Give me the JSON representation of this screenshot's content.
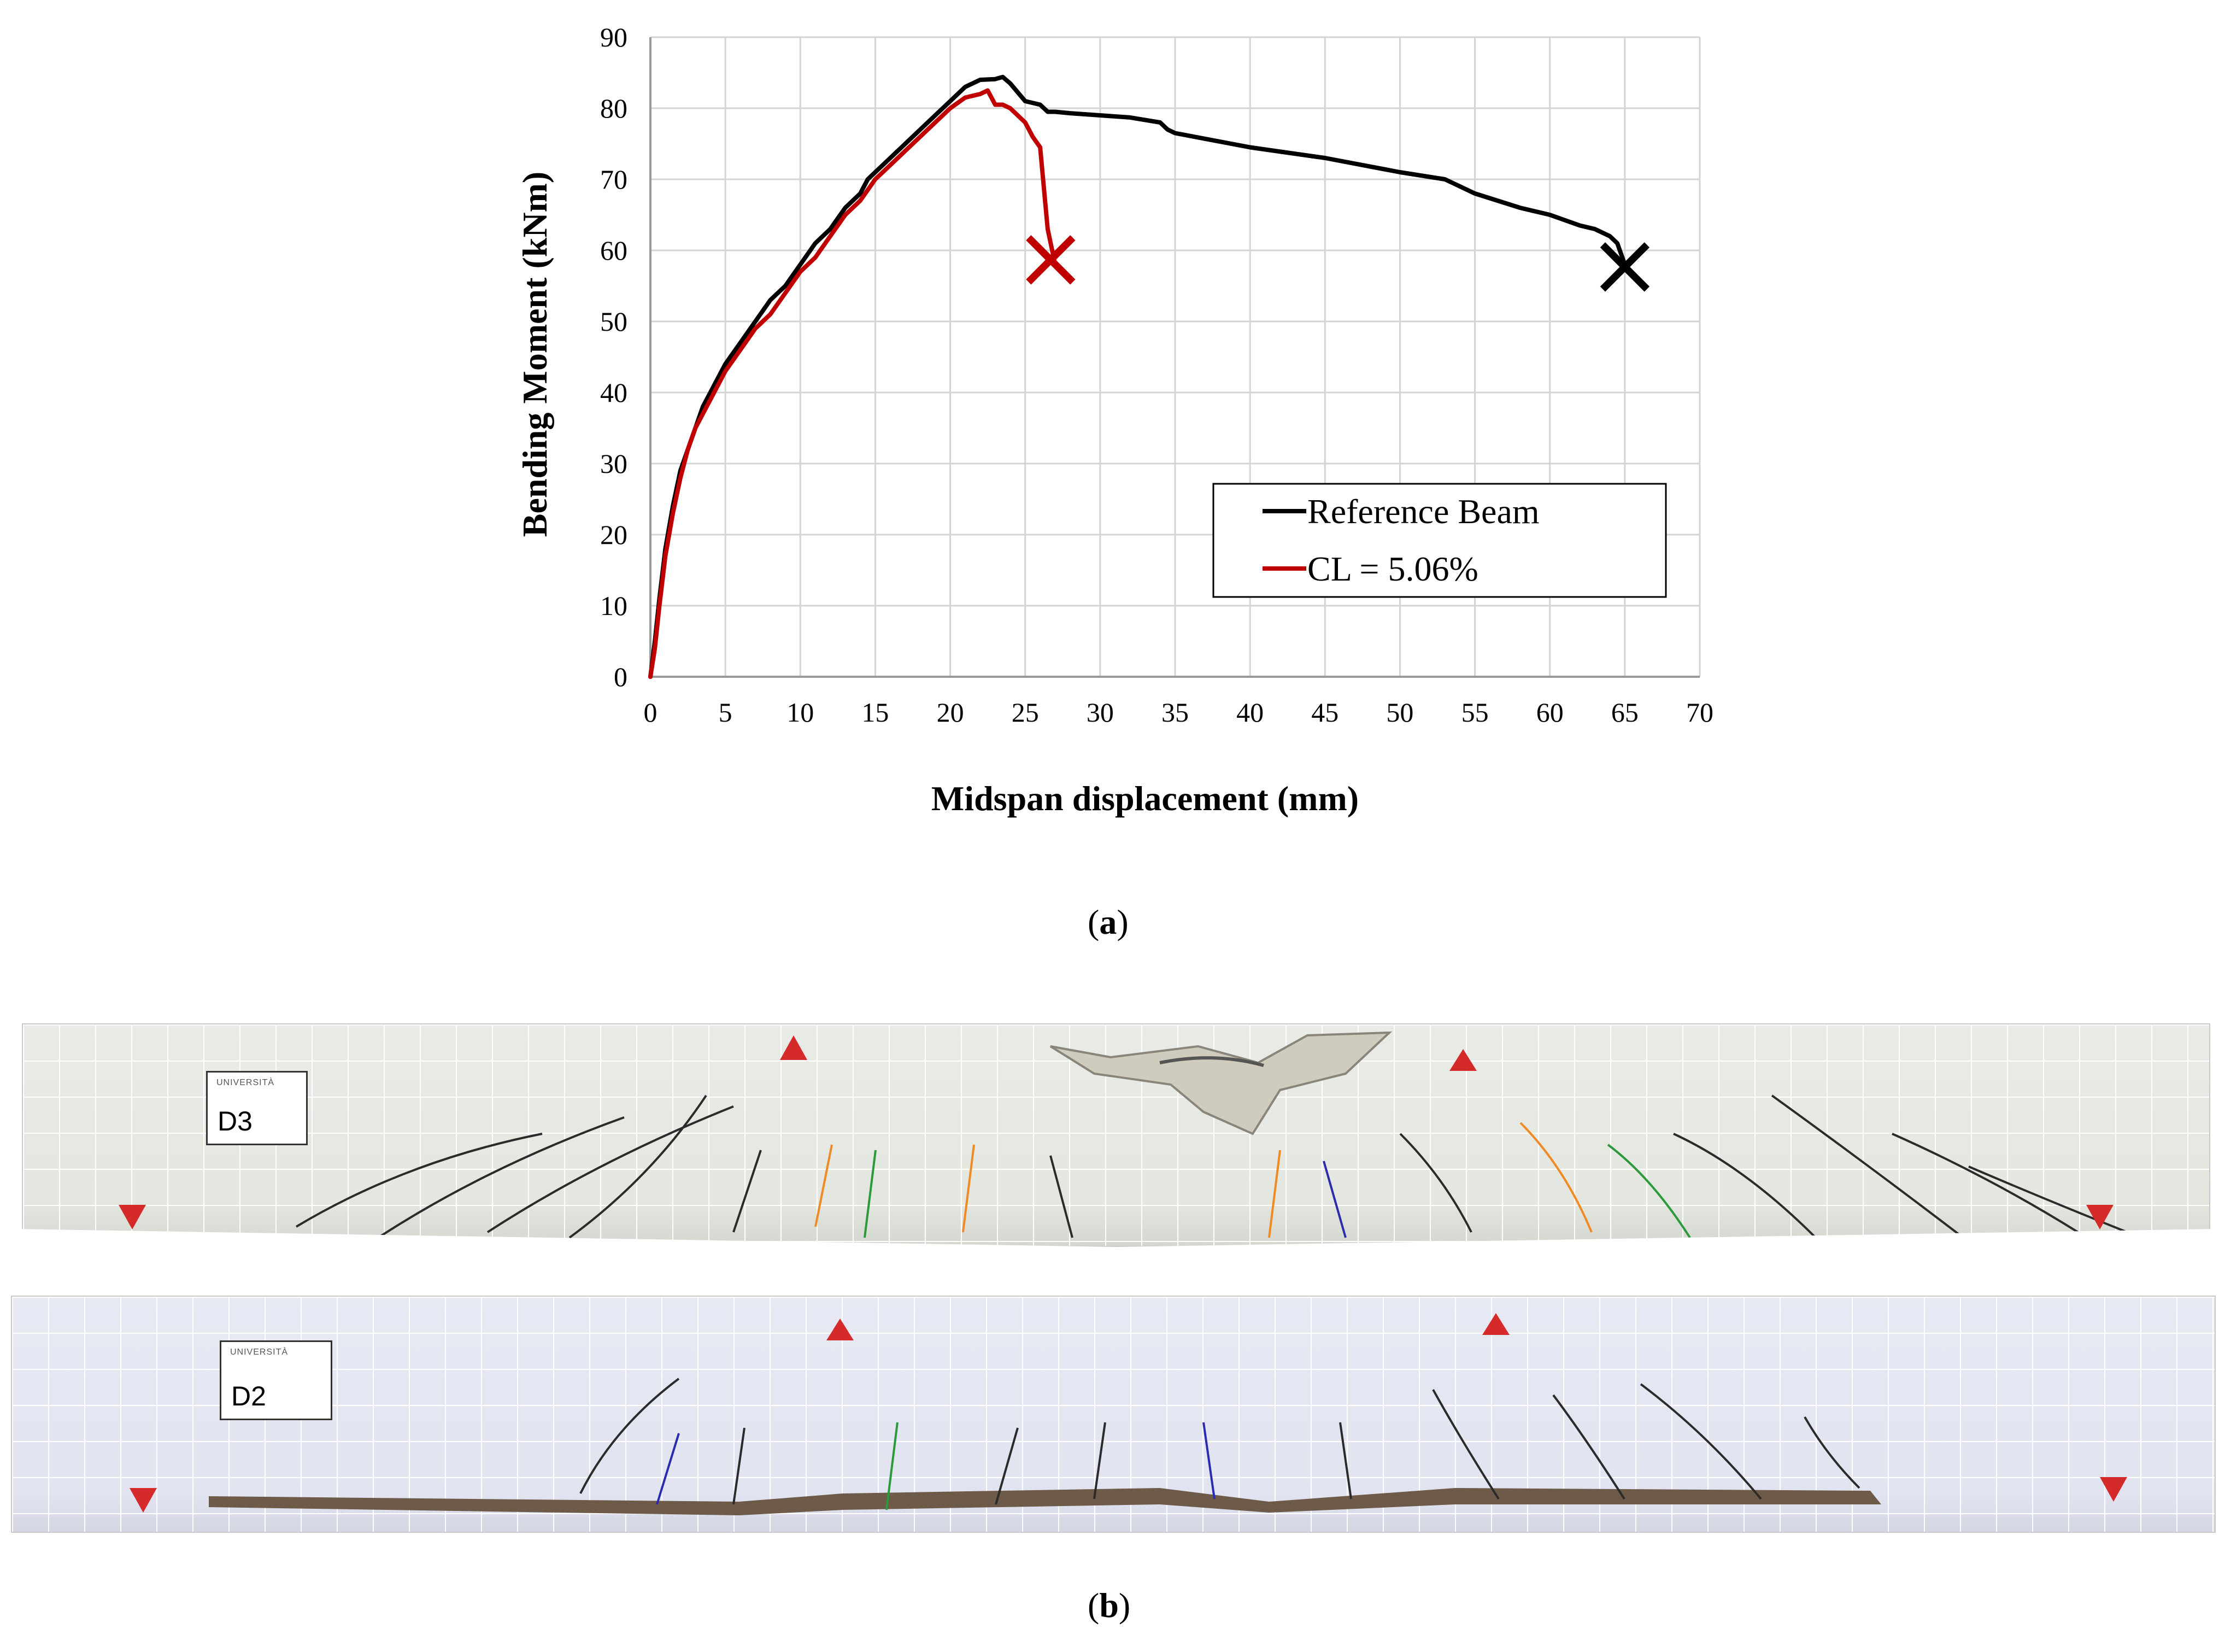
{
  "chart_data": {
    "type": "line",
    "xlabel": "Midspan displacement (mm)",
    "ylabel": "Bending Moment (kNm)",
    "xlim": [
      0,
      70
    ],
    "ylim": [
      0,
      90
    ],
    "xticks": [
      0,
      5,
      10,
      15,
      20,
      25,
      30,
      35,
      40,
      45,
      50,
      55,
      60,
      65,
      70
    ],
    "yticks": [
      0,
      10,
      20,
      30,
      40,
      50,
      60,
      70,
      80,
      90
    ],
    "grid": true,
    "legend_position": "lower-right",
    "series": [
      {
        "name": "Reference Beam",
        "color": "#000000",
        "x": [
          0,
          0.3,
          0.6,
          1,
          1.5,
          2,
          2.5,
          3,
          3.5,
          4,
          5,
          6,
          7,
          8,
          8.5,
          9,
          10,
          11,
          12,
          13,
          14,
          14.5,
          15,
          16,
          17,
          18,
          19,
          20,
          21,
          22,
          23,
          23.5,
          24,
          25,
          26,
          26.5,
          27,
          28,
          30,
          32,
          34,
          34.5,
          35,
          40,
          45,
          50,
          53,
          55,
          58,
          60,
          62,
          63,
          64,
          64.5,
          65
        ],
        "y": [
          0,
          5,
          11,
          18,
          24,
          29,
          32,
          35,
          38,
          40,
          44,
          47,
          50,
          53,
          54,
          55,
          58,
          61,
          63,
          66,
          68,
          70,
          71,
          73,
          75,
          77,
          79,
          81,
          83,
          84,
          84.1,
          84.4,
          83.5,
          81,
          80.5,
          79.5,
          79.5,
          79.3,
          79,
          78.7,
          78,
          77,
          76.5,
          74.5,
          73,
          71,
          70,
          68,
          66,
          65,
          63.5,
          63,
          62,
          61,
          58
        ]
      },
      {
        "name": "CL = 5.06%",
        "color": "#c00000",
        "x": [
          0,
          0.3,
          0.6,
          1,
          1.5,
          2,
          2.5,
          3,
          3.5,
          4,
          5,
          6,
          7,
          8,
          9,
          10,
          11,
          12,
          13,
          14,
          15,
          16,
          17,
          18,
          19,
          20,
          21,
          22,
          22.5,
          23,
          23.5,
          24,
          25,
          25.5,
          26,
          26.5,
          27
        ],
        "y": [
          0,
          4,
          10,
          17,
          23,
          28,
          32,
          35,
          37,
          39,
          43,
          46,
          49,
          51,
          54,
          57,
          59,
          62,
          65,
          67,
          70,
          72,
          74,
          76,
          78,
          80,
          81.5,
          82,
          82.5,
          80.5,
          80.5,
          80,
          78,
          76,
          74.5,
          63,
          58
        ]
      }
    ],
    "markers": [
      {
        "symbol": "×",
        "x": 26.7,
        "y": 58.5,
        "color": "#c00000"
      },
      {
        "symbol": "×",
        "x": 65.0,
        "y": 57.5,
        "color": "#000000"
      }
    ]
  },
  "captions": {
    "a_open": "(",
    "a_letter": "a",
    "a_close": ")",
    "b_open": "(",
    "b_letter": "b",
    "b_close": ")"
  },
  "beams": {
    "top_label": "D3",
    "bottom_label": "D2"
  }
}
